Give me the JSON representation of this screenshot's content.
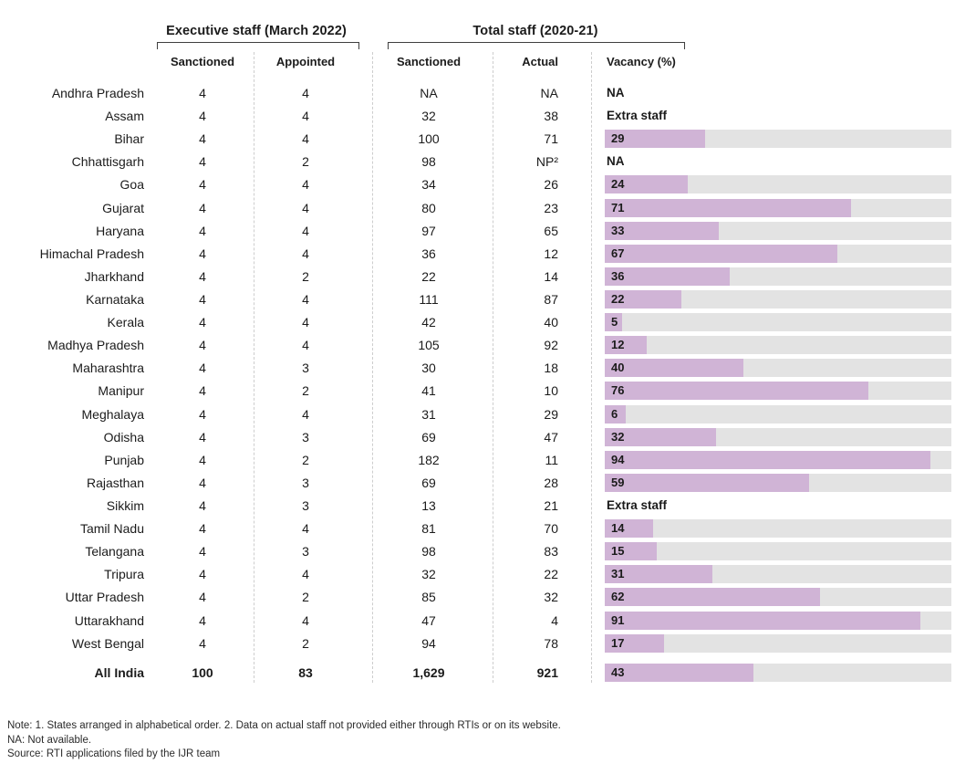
{
  "header": {
    "group_executive": "Executive staff (March 2022)",
    "group_total": "Total staff (2020-21)",
    "col_exec_sanctioned": "Sanctioned",
    "col_exec_appointed": "Appointed",
    "col_total_sanctioned": "Sanctioned",
    "col_total_actual": "Actual",
    "col_vacancy": "Vacancy (%)"
  },
  "colors": {
    "bar_fill": "#d0b4d6",
    "bar_track": "#e3e3e3",
    "text": "#1b1b1b"
  },
  "chart_data": {
    "type": "table",
    "title": "",
    "column_groups": [
      {
        "label": "Executive staff (March 2022)",
        "columns": [
          "Sanctioned",
          "Appointed"
        ]
      },
      {
        "label": "Total staff (2020-21)",
        "columns": [
          "Sanctioned",
          "Actual",
          "Vacancy (%)"
        ]
      }
    ],
    "vacancy_axis": {
      "min": 0,
      "max": 100,
      "bar_type": "horizontal"
    },
    "rows": [
      {
        "state": "Andhra Pradesh",
        "exec_sanctioned": "4",
        "exec_appointed": "4",
        "total_sanctioned": "NA",
        "total_actual": "NA",
        "vacancy_pct": null,
        "vacancy_label": "NA"
      },
      {
        "state": "Assam",
        "exec_sanctioned": "4",
        "exec_appointed": "4",
        "total_sanctioned": "32",
        "total_actual": "38",
        "vacancy_pct": null,
        "vacancy_label": "Extra staff"
      },
      {
        "state": "Bihar",
        "exec_sanctioned": "4",
        "exec_appointed": "4",
        "total_sanctioned": "100",
        "total_actual": "71",
        "vacancy_pct": 29,
        "vacancy_label": "29"
      },
      {
        "state": "Chhattisgarh",
        "exec_sanctioned": "4",
        "exec_appointed": "2",
        "total_sanctioned": "98",
        "total_actual": "NP²",
        "vacancy_pct": null,
        "vacancy_label": "NA"
      },
      {
        "state": "Goa",
        "exec_sanctioned": "4",
        "exec_appointed": "4",
        "total_sanctioned": "34",
        "total_actual": "26",
        "vacancy_pct": 24,
        "vacancy_label": "24"
      },
      {
        "state": "Gujarat",
        "exec_sanctioned": "4",
        "exec_appointed": "4",
        "total_sanctioned": "80",
        "total_actual": "23",
        "vacancy_pct": 71,
        "vacancy_label": "71"
      },
      {
        "state": "Haryana",
        "exec_sanctioned": "4",
        "exec_appointed": "4",
        "total_sanctioned": "97",
        "total_actual": "65",
        "vacancy_pct": 33,
        "vacancy_label": "33"
      },
      {
        "state": "Himachal Pradesh",
        "exec_sanctioned": "4",
        "exec_appointed": "4",
        "total_sanctioned": "36",
        "total_actual": "12",
        "vacancy_pct": 67,
        "vacancy_label": "67"
      },
      {
        "state": "Jharkhand",
        "exec_sanctioned": "4",
        "exec_appointed": "2",
        "total_sanctioned": "22",
        "total_actual": "14",
        "vacancy_pct": 36,
        "vacancy_label": "36"
      },
      {
        "state": "Karnataka",
        "exec_sanctioned": "4",
        "exec_appointed": "4",
        "total_sanctioned": "111",
        "total_actual": "87",
        "vacancy_pct": 22,
        "vacancy_label": "22"
      },
      {
        "state": "Kerala",
        "exec_sanctioned": "4",
        "exec_appointed": "4",
        "total_sanctioned": "42",
        "total_actual": "40",
        "vacancy_pct": 5,
        "vacancy_label": "5"
      },
      {
        "state": "Madhya Pradesh",
        "exec_sanctioned": "4",
        "exec_appointed": "4",
        "total_sanctioned": "105",
        "total_actual": "92",
        "vacancy_pct": 12,
        "vacancy_label": "12"
      },
      {
        "state": "Maharashtra",
        "exec_sanctioned": "4",
        "exec_appointed": "3",
        "total_sanctioned": "30",
        "total_actual": "18",
        "vacancy_pct": 40,
        "vacancy_label": "40"
      },
      {
        "state": "Manipur",
        "exec_sanctioned": "4",
        "exec_appointed": "2",
        "total_sanctioned": "41",
        "total_actual": "10",
        "vacancy_pct": 76,
        "vacancy_label": "76"
      },
      {
        "state": "Meghalaya",
        "exec_sanctioned": "4",
        "exec_appointed": "4",
        "total_sanctioned": "31",
        "total_actual": "29",
        "vacancy_pct": 6,
        "vacancy_label": "6"
      },
      {
        "state": "Odisha",
        "exec_sanctioned": "4",
        "exec_appointed": "3",
        "total_sanctioned": "69",
        "total_actual": "47",
        "vacancy_pct": 32,
        "vacancy_label": "32"
      },
      {
        "state": "Punjab",
        "exec_sanctioned": "4",
        "exec_appointed": "2",
        "total_sanctioned": "182",
        "total_actual": "11",
        "vacancy_pct": 94,
        "vacancy_label": "94"
      },
      {
        "state": "Rajasthan",
        "exec_sanctioned": "4",
        "exec_appointed": "3",
        "total_sanctioned": "69",
        "total_actual": "28",
        "vacancy_pct": 59,
        "vacancy_label": "59"
      },
      {
        "state": "Sikkim",
        "exec_sanctioned": "4",
        "exec_appointed": "3",
        "total_sanctioned": "13",
        "total_actual": "21",
        "vacancy_pct": null,
        "vacancy_label": "Extra staff"
      },
      {
        "state": "Tamil Nadu",
        "exec_sanctioned": "4",
        "exec_appointed": "4",
        "total_sanctioned": "81",
        "total_actual": "70",
        "vacancy_pct": 14,
        "vacancy_label": "14"
      },
      {
        "state": "Telangana",
        "exec_sanctioned": "4",
        "exec_appointed": "3",
        "total_sanctioned": "98",
        "total_actual": "83",
        "vacancy_pct": 15,
        "vacancy_label": "15"
      },
      {
        "state": "Tripura",
        "exec_sanctioned": "4",
        "exec_appointed": "4",
        "total_sanctioned": "32",
        "total_actual": "22",
        "vacancy_pct": 31,
        "vacancy_label": "31"
      },
      {
        "state": "Uttar Pradesh",
        "exec_sanctioned": "4",
        "exec_appointed": "2",
        "total_sanctioned": "85",
        "total_actual": "32",
        "vacancy_pct": 62,
        "vacancy_label": "62"
      },
      {
        "state": "Uttarakhand",
        "exec_sanctioned": "4",
        "exec_appointed": "4",
        "total_sanctioned": "47",
        "total_actual": "4",
        "vacancy_pct": 91,
        "vacancy_label": "91"
      },
      {
        "state": "West Bengal",
        "exec_sanctioned": "4",
        "exec_appointed": "2",
        "total_sanctioned": "94",
        "total_actual": "78",
        "vacancy_pct": 17,
        "vacancy_label": "17"
      }
    ],
    "total_row": {
      "state": "All India",
      "exec_sanctioned": "100",
      "exec_appointed": "83",
      "total_sanctioned": "1,629",
      "total_actual": "921",
      "vacancy_pct": 43,
      "vacancy_label": "43"
    }
  },
  "notes": {
    "line1": "Note: 1. States arranged in alphabetical order. 2. Data on actual staff not provided either through RTIs or on its website.",
    "line2": "NA: Not available.",
    "line3": "Source: RTI applications filed by the IJR team"
  }
}
